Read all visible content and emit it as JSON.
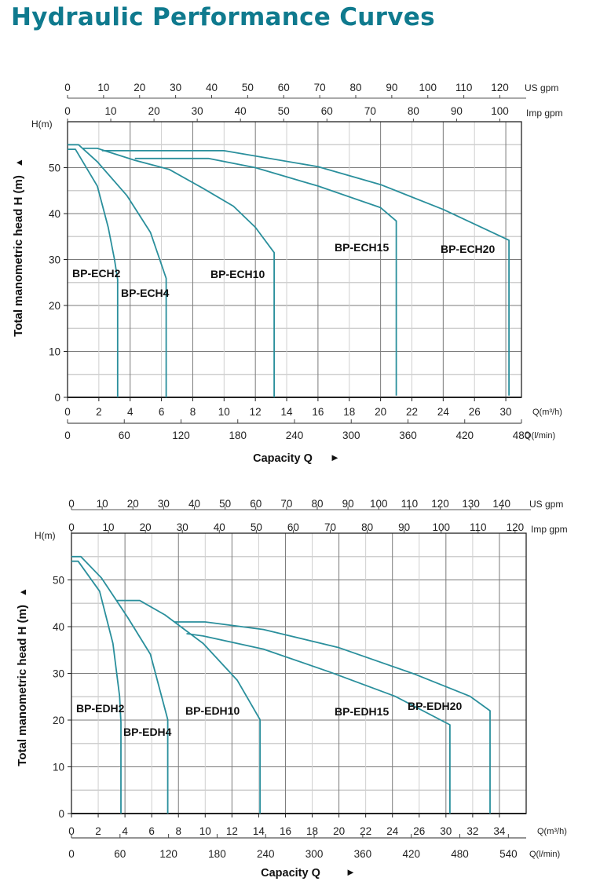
{
  "page_title": "Hydraulic Performance Curves",
  "colors": {
    "title": "#0f7a8e",
    "curve": "#2a8f9c",
    "grid_major": "#7a7a7a",
    "grid_minor": "#cfcfcf"
  },
  "chart_data": [
    {
      "type": "line",
      "title": "",
      "ylabel": "Total manometric head H (m)",
      "ylabel_arrow": "▲",
      "y_unit": "H(m)",
      "ylim": [
        0,
        60
      ],
      "y_ticks": [
        "0",
        "10",
        "20",
        "30",
        "40",
        "50"
      ],
      "grid": true,
      "xlabel": "Capacity Q",
      "xlabel_arrow": "►",
      "x_unit": "Q(m³/h)",
      "x_ticks": [
        "0",
        "2",
        "4",
        "6",
        "8",
        "10",
        "12",
        "14",
        "16",
        "18",
        "20",
        "22",
        "24",
        "26",
        "30"
      ],
      "secondary_axes": [
        {
          "unit": "US gpm",
          "position": "top",
          "range": [
            0,
            126
          ],
          "ticks": [
            "0",
            "10",
            "20",
            "30",
            "40",
            "50",
            "60",
            "70",
            "80",
            "90",
            "100",
            "110",
            "120"
          ]
        },
        {
          "unit": "Imp gpm",
          "position": "top",
          "range": [
            0,
            105
          ],
          "ticks": [
            "0",
            "10",
            "20",
            "30",
            "40",
            "50",
            "60",
            "70",
            "80",
            "90",
            "100"
          ]
        },
        {
          "unit": "Q(l/min)",
          "position": "bottom",
          "range": [
            0,
            480
          ],
          "ticks": [
            "0",
            "60",
            "120",
            "180",
            "240",
            "300",
            "360",
            "420",
            "480"
          ]
        }
      ],
      "series": [
        {
          "name": "BP-ECH2",
          "points": [
            [
              0,
              54
            ],
            [
              0.5,
              54
            ],
            [
              1.9,
              46
            ],
            [
              2.6,
              37
            ],
            [
              3.0,
              30
            ],
            [
              3.2,
              25.6
            ],
            [
              3.2,
              0
            ]
          ]
        },
        {
          "name": "BP-ECH4",
          "points": [
            [
              0,
              55
            ],
            [
              0.7,
              55
            ],
            [
              1.9,
              51.3
            ],
            [
              3.8,
              43.9
            ],
            [
              5.3,
              35.9
            ],
            [
              6.3,
              25.9
            ],
            [
              6.3,
              0
            ]
          ]
        },
        {
          "name": "BP-ECH10",
          "points": [
            [
              1.0,
              54.2
            ],
            [
              1.9,
              54.2
            ],
            [
              4.3,
              51.6
            ],
            [
              6.5,
              49.6
            ],
            [
              8.6,
              45.6
            ],
            [
              10.6,
              41.6
            ],
            [
              12.0,
              37
            ],
            [
              13.2,
              31.5
            ],
            [
              13.2,
              0
            ]
          ]
        },
        {
          "name": "BP-ECH15",
          "points": [
            [
              4.3,
              52
            ],
            [
              9.0,
              52
            ],
            [
              12,
              50
            ],
            [
              16,
              46
            ],
            [
              20,
              41.3
            ],
            [
              21.0,
              38.4
            ],
            [
              21.0,
              0.4
            ]
          ]
        },
        {
          "name": "BP-ECH20",
          "points": [
            [
              2.2,
              53.7
            ],
            [
              10,
              53.7
            ],
            [
              16,
              50.2
            ],
            [
              20,
              46.3
            ],
            [
              24,
              40.9
            ],
            [
              30.2,
              34.2
            ],
            [
              30.2,
              0.4
            ]
          ]
        }
      ]
    },
    {
      "type": "line",
      "title": "",
      "ylabel": "Total manometric head H (m)",
      "ylabel_arrow": "▲",
      "y_unit": "H(m)",
      "ylim": [
        0,
        60
      ],
      "y_ticks": [
        "0",
        "10",
        "20",
        "30",
        "40",
        "50"
      ],
      "grid": true,
      "xlabel": "Capacity Q",
      "xlabel_arrow": "►",
      "x_unit": "Q(m³/h)",
      "x_ticks": [
        "0",
        "2",
        "4",
        "6",
        "8",
        "10",
        "12",
        "14",
        "16",
        "18",
        "20",
        "22",
        "24",
        "26",
        "30",
        "32",
        "34"
      ],
      "secondary_axes": [
        {
          "unit": "US gpm",
          "position": "top",
          "range": [
            0,
            148
          ],
          "ticks": [
            "0",
            "10",
            "20",
            "30",
            "40",
            "50",
            "60",
            "70",
            "80",
            "90",
            "100",
            "110",
            "120",
            "130",
            "140"
          ]
        },
        {
          "unit": "Imp gpm",
          "position": "top",
          "range": [
            0,
            123
          ],
          "ticks": [
            "0",
            "10",
            "20",
            "30",
            "40",
            "50",
            "60",
            "70",
            "80",
            "90",
            "100",
            "110",
            "120"
          ]
        },
        {
          "unit": "Q(l/min)",
          "position": "bottom",
          "range": [
            0,
            562
          ],
          "ticks": [
            "0",
            "60",
            "120",
            "180",
            "240",
            "300",
            "360",
            "420",
            "480",
            "540"
          ]
        }
      ],
      "series": [
        {
          "name": "BP-EDH2",
          "points": [
            [
              0,
              54
            ],
            [
              0.5,
              54
            ],
            [
              2.1,
              47.6
            ],
            [
              3.1,
              36.4
            ],
            [
              3.6,
              25.1
            ],
            [
              3.7,
              19.5
            ],
            [
              3.7,
              0
            ]
          ]
        },
        {
          "name": "BP-EDH4",
          "points": [
            [
              0,
              55
            ],
            [
              0.7,
              55
            ],
            [
              2.25,
              50.4
            ],
            [
              4.2,
              42
            ],
            [
              5.9,
              34.1
            ],
            [
              7.2,
              20.1
            ],
            [
              7.2,
              0
            ]
          ]
        },
        {
          "name": "BP-EDH10",
          "points": [
            [
              3.4,
              45.6
            ],
            [
              5.1,
              45.6
            ],
            [
              7.0,
              42.5
            ],
            [
              9.85,
              36.4
            ],
            [
              12.4,
              28.5
            ],
            [
              14.1,
              20.1
            ],
            [
              14.1,
              0
            ]
          ]
        },
        {
          "name": "BP-EDH15",
          "points": [
            [
              8.6,
              38.5
            ],
            [
              9.85,
              38
            ],
            [
              14.35,
              35.2
            ],
            [
              19.4,
              30.2
            ],
            [
              24.2,
              25.1
            ],
            [
              30.3,
              19
            ],
            [
              30.3,
              0
            ]
          ]
        },
        {
          "name": "BP-EDH20",
          "points": [
            [
              7.7,
              41
            ],
            [
              10,
              41
            ],
            [
              14.35,
              39.4
            ],
            [
              20,
              35.5
            ],
            [
              25.6,
              29.9
            ],
            [
              31.8,
              25.1
            ],
            [
              33.3,
              22
            ],
            [
              33.3,
              0
            ]
          ]
        }
      ]
    }
  ]
}
